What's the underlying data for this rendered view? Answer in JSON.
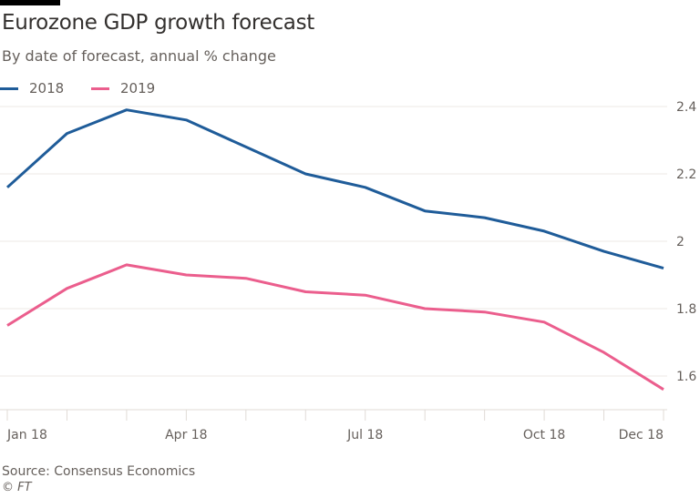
{
  "title": "Eurozone GDP growth forecast",
  "subtitle": "By date of forecast, annual % change",
  "source": "Source: Consensus Economics",
  "copyright": "© FT",
  "chart_data": {
    "type": "line",
    "title": "Eurozone GDP growth forecast",
    "subtitle": "By date of forecast, annual % change",
    "x": [
      "Jan 18",
      "Feb 18",
      "Mar 18",
      "Apr 18",
      "May 18",
      "Jun 18",
      "Jul 18",
      "Aug 18",
      "Sep 18",
      "Oct 18",
      "Nov 18",
      "Dec 18"
    ],
    "x_tick_labels": [
      "Jan 18",
      "Apr 18",
      "Jul 18",
      "Oct 18",
      "Dec 18"
    ],
    "y_ticks": [
      1.6,
      1.8,
      2,
      2.2,
      2.4
    ],
    "y_tick_labels": [
      "1.6",
      "1.8",
      "2",
      "2.2",
      "2.4"
    ],
    "ylim": [
      1.5,
      2.45
    ],
    "y_axis_side": "right",
    "grid": true,
    "legend_placement": "top-left",
    "series": [
      {
        "name": "2018",
        "color": "#1f5c99",
        "values": [
          2.16,
          2.32,
          2.39,
          2.36,
          2.28,
          2.2,
          2.16,
          2.09,
          2.07,
          2.03,
          1.97,
          1.92
        ]
      },
      {
        "name": "2019",
        "color": "#eb5e8d",
        "values": [
          1.75,
          1.86,
          1.93,
          1.9,
          1.89,
          1.85,
          1.84,
          1.8,
          1.79,
          1.76,
          1.67,
          1.56
        ]
      }
    ]
  }
}
